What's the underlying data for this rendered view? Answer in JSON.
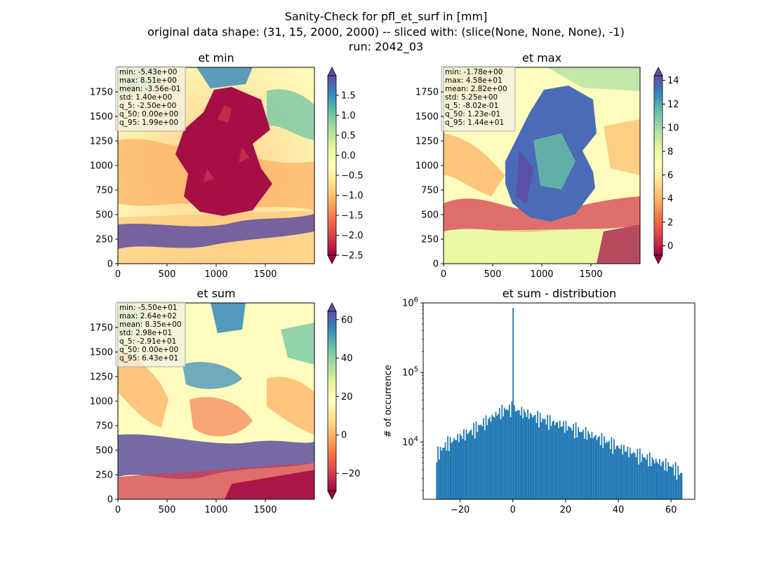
{
  "figure": {
    "title_lines": [
      "Sanity-Check for pfl_et_surf in [mm]",
      "original data shape: (31, 15, 2000, 2000) -- sliced with: (slice(None, None, None), -1)",
      "run: 2042_03"
    ]
  },
  "panels": [
    {
      "title": "et min",
      "x_ticks": [
        "0",
        "500",
        "1000",
        "1500"
      ],
      "y_ticks": [
        "0",
        "250",
        "500",
        "750",
        "1000",
        "1250",
        "1500",
        "1750"
      ],
      "stats": [
        "min: -5.43e+00",
        "max: 8.51e+00",
        "mean: -3.56e-01",
        "std: 1.40e+00",
        "q_5: -2.50e+00",
        "q_50: 0.00e+00",
        "q_95: 1.99e+00"
      ],
      "colorbar": {
        "range": [
          -2.5,
          1.99
        ],
        "ticks": [
          "1.5",
          "1.0",
          "0.5",
          "0.0",
          "−0.5",
          "−1.0",
          "−1.5",
          "−2.0",
          "−2.5"
        ],
        "tick_values": [
          1.5,
          1.0,
          0.5,
          0.0,
          -0.5,
          -1.0,
          -1.5,
          -2.0,
          -2.5
        ]
      }
    },
    {
      "title": "et max",
      "x_ticks": [
        "0",
        "500",
        "1000",
        "1500"
      ],
      "y_ticks": [
        "0",
        "250",
        "500",
        "750",
        "1000",
        "1250",
        "1500",
        "1750"
      ],
      "stats": [
        "min: -1.78e+00",
        "max: 4.58e+01",
        "mean: 2.82e+00",
        "std: 5.25e+00",
        "q_5: -8.02e-01",
        "q_50: 1.23e-01",
        "q_95: 1.44e+01"
      ],
      "colorbar": {
        "range": [
          -0.802,
          14.4
        ],
        "ticks": [
          "14",
          "12",
          "10",
          "8",
          "6",
          "4",
          "2",
          "0"
        ],
        "tick_values": [
          14,
          12,
          10,
          8,
          6,
          4,
          2,
          0
        ]
      }
    },
    {
      "title": "et sum",
      "x_ticks": [
        "0",
        "500",
        "1000",
        "1500"
      ],
      "y_ticks": [
        "0",
        "250",
        "500",
        "750",
        "1000",
        "1250",
        "1500",
        "1750"
      ],
      "stats": [
        "min: -5.50e+01",
        "max: 2.64e+02",
        "mean: 8.35e+00",
        "std: 2.98e+01",
        "q_5: -2.91e+01",
        "q_50: 0.00e+00",
        "q_95: 6.43e+01"
      ],
      "colorbar": {
        "range": [
          -29.1,
          64.3
        ],
        "ticks": [
          "60",
          "40",
          "20",
          "0",
          "−20"
        ],
        "tick_values": [
          60,
          40,
          20,
          0,
          -20
        ]
      }
    }
  ],
  "chart_data": [
    {
      "type": "heatmap",
      "title": "et min",
      "xlim": [
        0,
        2000
      ],
      "ylim": [
        0,
        2000
      ],
      "colormap": "Spectral",
      "clim": [
        -2.5,
        1.99
      ],
      "stats": {
        "min": -5.43,
        "max": 8.51,
        "mean": -0.356,
        "std": 1.4,
        "q_5": -2.5,
        "q_50": 0.0,
        "q_95": 1.99
      }
    },
    {
      "type": "heatmap",
      "title": "et max",
      "xlim": [
        0,
        2000
      ],
      "ylim": [
        0,
        2000
      ],
      "colormap": "Spectral",
      "clim": [
        -0.802,
        14.4
      ],
      "stats": {
        "min": -1.78,
        "max": 45.8,
        "mean": 2.82,
        "std": 5.25,
        "q_5": -0.802,
        "q_50": 0.123,
        "q_95": 14.4
      }
    },
    {
      "type": "heatmap",
      "title": "et sum",
      "xlim": [
        0,
        2000
      ],
      "ylim": [
        0,
        2000
      ],
      "colormap": "Spectral",
      "clim": [
        -29.1,
        64.3
      ],
      "stats": {
        "min": -55.0,
        "max": 264.0,
        "mean": 8.35,
        "std": 29.8,
        "q_5": -29.1,
        "q_50": 0.0,
        "q_95": 64.3
      }
    },
    {
      "type": "bar",
      "title": "et sum - distribution",
      "xlabel": "",
      "ylabel": "# of occurrence",
      "yscale": "log",
      "xlim": [
        -34,
        69
      ],
      "ylim": [
        1500,
        1000000
      ],
      "x_ticks": [
        "−20",
        "0",
        "20",
        "40",
        "60"
      ],
      "x_tick_values": [
        -20,
        0,
        20,
        40,
        60
      ],
      "y_ticks": [
        "10^4",
        "10^5",
        "10^6"
      ],
      "y_tick_values": [
        10000,
        100000,
        1000000
      ],
      "color": "#1f77b4",
      "bin_range": [
        -29.1,
        64.3
      ],
      "bins_approx": 200,
      "profile": [
        {
          "x": -29,
          "y": 6500
        },
        {
          "x": -25,
          "y": 9500
        },
        {
          "x": -20,
          "y": 12000
        },
        {
          "x": -15,
          "y": 15000
        },
        {
          "x": -10,
          "y": 20000
        },
        {
          "x": -5,
          "y": 27000
        },
        {
          "x": -2,
          "y": 30000
        },
        {
          "x": 0,
          "y": 850000
        },
        {
          "x": 2,
          "y": 28000
        },
        {
          "x": 5,
          "y": 26000
        },
        {
          "x": 10,
          "y": 22000
        },
        {
          "x": 20,
          "y": 17000
        },
        {
          "x": 30,
          "y": 12500
        },
        {
          "x": 40,
          "y": 8500
        },
        {
          "x": 50,
          "y": 6000
        },
        {
          "x": 60,
          "y": 4500
        },
        {
          "x": 64,
          "y": 3500
        }
      ]
    }
  ]
}
